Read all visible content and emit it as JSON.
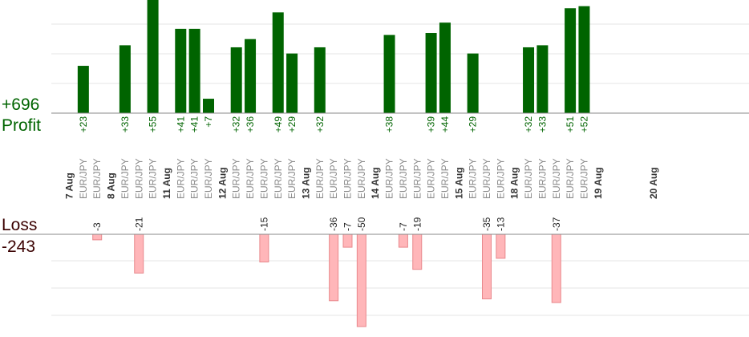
{
  "summary": {
    "profit_value": "+696",
    "profit_label": "Profit",
    "loss_label": "Loss",
    "loss_value": "-243"
  },
  "colors": {
    "profit_bar": "#006400",
    "loss_bar": "#ffb6b9",
    "loss_bar_edge": "#e8888c",
    "profit_text": "#006400",
    "loss_text": "#3a0000",
    "grid": "#e6e6e6",
    "axis": "#888888"
  },
  "chart_data": {
    "type": "bar",
    "grid": true,
    "profit_axis": {
      "ylim": [
        0,
        55
      ]
    },
    "loss_axis": {
      "ylim": [
        -50,
        0
      ]
    },
    "dates": [
      {
        "label": "7 Aug",
        "slot": 0
      },
      {
        "label": "8 Aug",
        "slot": 2
      },
      {
        "label": "11 Aug",
        "slot": 5
      },
      {
        "label": "12 Aug",
        "slot": 8
      },
      {
        "label": "13 Aug",
        "slot": 13
      },
      {
        "label": "14 Aug",
        "slot": 17
      },
      {
        "label": "15 Aug",
        "slot": 22
      },
      {
        "label": "18 Aug",
        "slot": 25
      },
      {
        "label": "19 Aug",
        "slot": 30
      },
      {
        "label": "20 Aug",
        "slot": 33
      }
    ],
    "trades": [
      {
        "pair": "EUR/JPY",
        "value": 23,
        "label": "+23"
      },
      {
        "pair": "EUR/JPY",
        "value": -3,
        "label": "-3"
      },
      {
        "pair": "EUR/JPY",
        "value": 33,
        "label": "+33"
      },
      {
        "pair": "EUR/JPY",
        "value": -21,
        "label": "-21"
      },
      {
        "pair": "EUR/JPY",
        "value": 55,
        "label": "+55"
      },
      {
        "pair": "EUR/JPY",
        "value": 41,
        "label": "+41"
      },
      {
        "pair": "EUR/JPY",
        "value": 41,
        "label": "+41"
      },
      {
        "pair": "EUR/JPY",
        "value": 7,
        "label": "+7"
      },
      {
        "pair": "EUR/JPY",
        "value": 32,
        "label": "+32"
      },
      {
        "pair": "EUR/JPY",
        "value": 36,
        "label": "+36"
      },
      {
        "pair": "EUR/JPY",
        "value": -15,
        "label": "-15"
      },
      {
        "pair": "EUR/JPY",
        "value": 49,
        "label": "+49"
      },
      {
        "pair": "EUR/JPY",
        "value": 29,
        "label": "+29"
      },
      {
        "pair": "EUR/JPY",
        "value": 32,
        "label": "+32"
      },
      {
        "pair": "EUR/JPY",
        "value": -36,
        "label": "-36"
      },
      {
        "pair": "EUR/JPY",
        "value": -7,
        "label": "-7"
      },
      {
        "pair": "EUR/JPY",
        "value": -50,
        "label": "-50"
      },
      {
        "pair": "EUR/JPY",
        "value": 38,
        "label": "+38"
      },
      {
        "pair": "EUR/JPY",
        "value": -7,
        "label": "-7"
      },
      {
        "pair": "EUR/JPY",
        "value": -19,
        "label": "-19"
      },
      {
        "pair": "EUR/JPY",
        "value": 39,
        "label": "+39"
      },
      {
        "pair": "EUR/JPY",
        "value": 44,
        "label": "+44"
      },
      {
        "pair": "EUR/JPY",
        "value": 29,
        "label": "+29"
      },
      {
        "pair": "EUR/JPY",
        "value": -35,
        "label": "-35"
      },
      {
        "pair": "EUR/JPY",
        "value": -13,
        "label": "-13"
      },
      {
        "pair": "EUR/JPY",
        "value": 32,
        "label": "+32"
      },
      {
        "pair": "EUR/JPY",
        "value": 33,
        "label": "+33"
      },
      {
        "pair": "EUR/JPY",
        "value": -37,
        "label": "-37"
      },
      {
        "pair": "EUR/JPY",
        "value": 51,
        "label": "+51"
      },
      {
        "pair": "EUR/JPY",
        "value": 52,
        "label": "+52"
      }
    ]
  }
}
